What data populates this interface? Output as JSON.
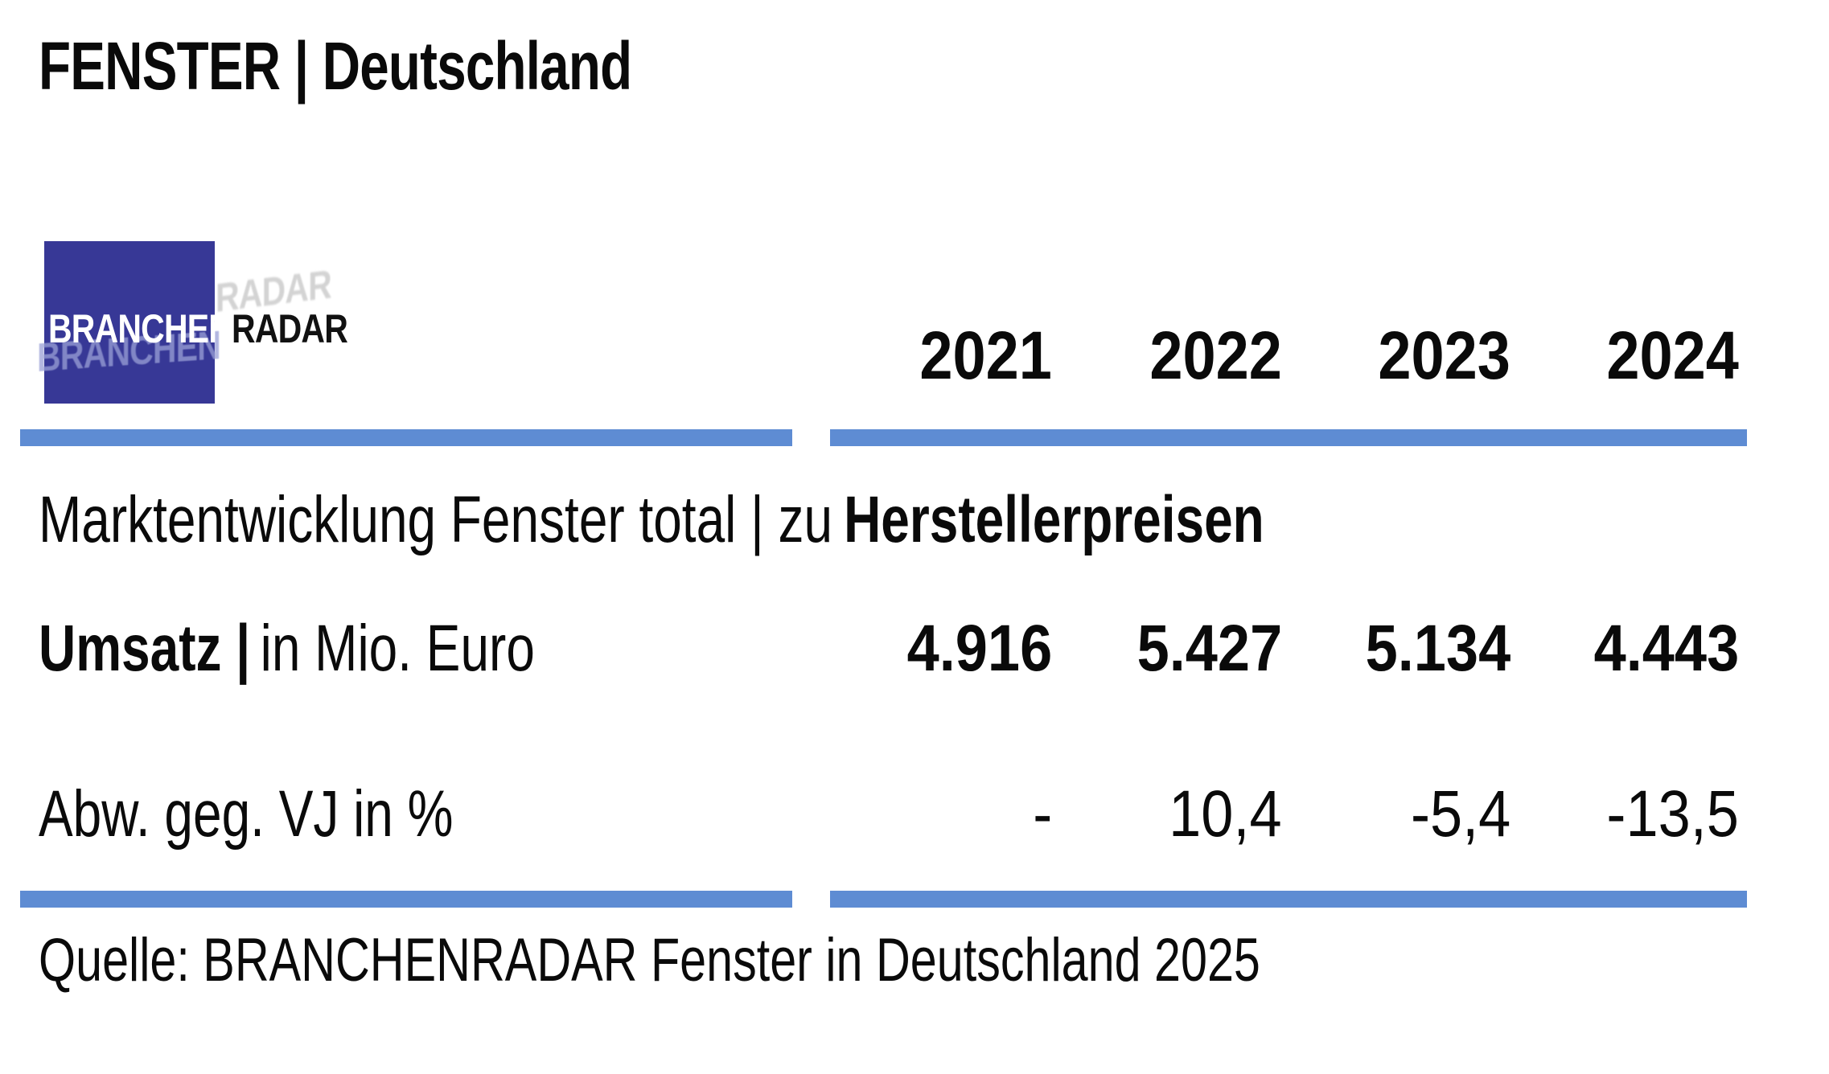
{
  "header": {
    "title": "FENSTER | Deutschland"
  },
  "logo": {
    "primary": "BRANCHEN",
    "secondary": "RADAR"
  },
  "section": {
    "title_regular": "Marktentwicklung Fenster total | zu",
    "title_bold": "Herstellerpreisen"
  },
  "table": {
    "columns": [
      "2021",
      "2022",
      "2023",
      "2024"
    ],
    "rows": [
      {
        "label_bold": "Umsatz |",
        "label_regular": "in Mio. Euro",
        "values": [
          "4.916",
          "5.427",
          "5.134",
          "4.443"
        ]
      },
      {
        "label_bold": "",
        "label_regular": "Abw. geg. VJ in %",
        "values": [
          "-",
          "10,4",
          "-5,4",
          "-13,5"
        ]
      }
    ]
  },
  "footer": {
    "source": "Quelle: BRANCHENRADAR Fenster in Deutschland 2025"
  },
  "colors": {
    "accent_bar": "#5e8cd3",
    "logo_blue": "#373896",
    "text": "#0a0a0a"
  },
  "chart_data": {
    "type": "table",
    "title": "Marktentwicklung Fenster total | zu Herstellerpreisen",
    "categories": [
      "2021",
      "2022",
      "2023",
      "2024"
    ],
    "series": [
      {
        "name": "Umsatz | in Mio. Euro",
        "values": [
          4916,
          5427,
          5134,
          4443
        ]
      },
      {
        "name": "Abw. geg. VJ in %",
        "values": [
          null,
          10.4,
          -5.4,
          -13.5
        ]
      }
    ],
    "source": "Quelle: BRANCHENRADAR Fenster in Deutschland 2025"
  }
}
